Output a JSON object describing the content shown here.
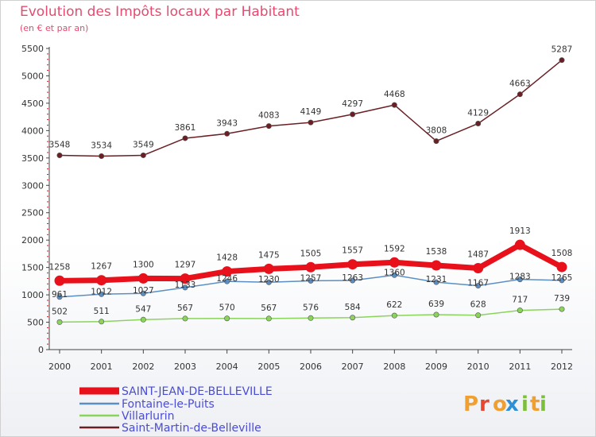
{
  "title": "Evolution des Impôts locaux par Habitant",
  "subtitle": "(en € et par an)",
  "logo": {
    "letters": [
      "P",
      "r",
      "o",
      "x",
      "i",
      "t",
      "i"
    ],
    "colors": [
      "#f0a030",
      "#e8472f",
      "#f0a030",
      "#2d8fd6",
      "#7bbf3a",
      "#f0a030",
      "#7bbf3a"
    ]
  },
  "chart_data": {
    "type": "line",
    "x": [
      2000,
      2001,
      2002,
      2003,
      2004,
      2005,
      2006,
      2007,
      2008,
      2009,
      2010,
      2011,
      2012
    ],
    "ylim": [
      0,
      5500
    ],
    "yticks": [
      0,
      500,
      1000,
      1500,
      2000,
      2500,
      3000,
      3500,
      4000,
      4500,
      5000,
      5500
    ],
    "grid": false,
    "legend_position": "bottom-left",
    "series": [
      {
        "name": "SAINT-JEAN-DE-BELLEVILLE",
        "color": "#e8101a",
        "values": [
          1258,
          1267,
          1300,
          1297,
          1428,
          1475,
          1505,
          1557,
          1592,
          1538,
          1487,
          1913,
          1508
        ]
      },
      {
        "name": "Fontaine-le-Puits",
        "color": "#5b8fc4",
        "values": [
          961,
          1012,
          1027,
          1133,
          1246,
          1230,
          1257,
          1263,
          1360,
          1231,
          1167,
          1283,
          1265
        ]
      },
      {
        "name": "Villarlurin",
        "color": "#8bd45b",
        "values": [
          502,
          511,
          547,
          567,
          570,
          567,
          576,
          584,
          622,
          639,
          628,
          717,
          739
        ]
      },
      {
        "name": "Saint-Martin-de-Belleville",
        "color": "#6b1f24",
        "values": [
          3548,
          3534,
          3549,
          3861,
          3943,
          4083,
          4149,
          4297,
          4468,
          3808,
          4129,
          4663,
          5287
        ]
      }
    ]
  }
}
